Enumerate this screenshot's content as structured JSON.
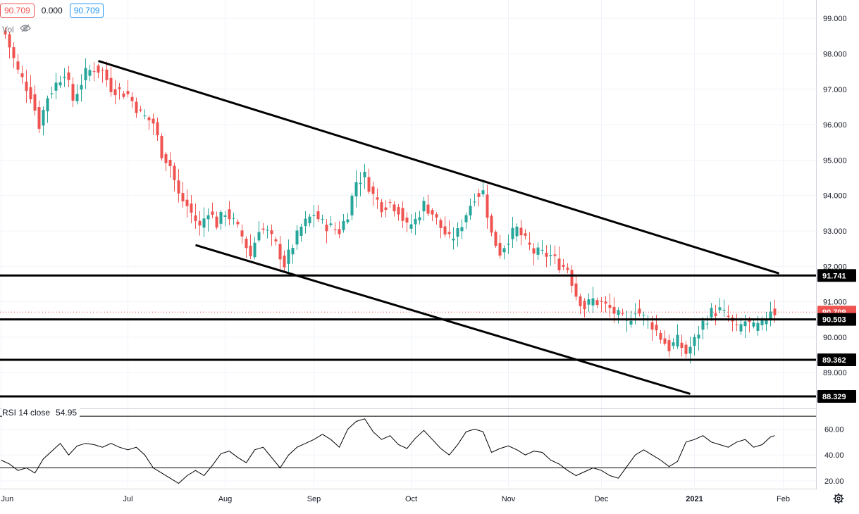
{
  "header": {
    "price_box": "90.709",
    "change": "0.000",
    "price_box2": "90.709",
    "vol_label": "Vol",
    "vol_icon": "eye-slash-icon"
  },
  "rsi_legend": {
    "label": "RSI 14 close",
    "value": "54.95"
  },
  "chart_data": {
    "type": "candlestick",
    "price_axis": {
      "ylim": [
        87.99,
        99.52
      ],
      "ticks": [
        "99.000",
        "98.000",
        "97.000",
        "96.000",
        "95.000",
        "94.000",
        "93.000",
        "92.000",
        "91.000",
        "90.000",
        "89.000"
      ],
      "tick_values": [
        99,
        98,
        97,
        96,
        95,
        94,
        93,
        92,
        91,
        90,
        89
      ]
    },
    "time_axis": {
      "labels": [
        "Jun",
        "Jul",
        "Aug",
        "Sep",
        "Oct",
        "Nov",
        "Dec",
        "2021",
        "Feb"
      ],
      "label_index": [
        -1,
        29,
        52,
        73,
        96,
        119,
        141,
        163,
        184
      ],
      "bar_count": 183
    },
    "price_labels": [
      {
        "text": "91.741",
        "value": 91.741,
        "style": "black"
      },
      {
        "text": "90.709",
        "value": 90.709,
        "style": "red"
      },
      {
        "text": "14:32:07",
        "value": 90.52,
        "style": "red"
      },
      {
        "text": "90.503",
        "value": 90.503,
        "style": "black"
      },
      {
        "text": "89.362",
        "value": 89.362,
        "style": "black"
      },
      {
        "text": "88.329",
        "value": 88.329,
        "style": "black"
      }
    ],
    "horizontal_lines": [
      91.741,
      90.503,
      89.362,
      88.329
    ],
    "current_price_line": 90.709,
    "trend_lines": [
      {
        "from": [
          22,
          97.8
        ],
        "to": [
          183,
          91.8
        ]
      },
      {
        "from": [
          45,
          92.6
        ],
        "to": [
          162,
          88.4
        ]
      }
    ],
    "waypoints": [
      [
        0,
        98.55
      ],
      [
        3,
        97.5
      ],
      [
        6,
        96.85
      ],
      [
        8,
        96.0
      ],
      [
        10,
        96.8
      ],
      [
        14,
        97.5
      ],
      [
        16,
        96.7
      ],
      [
        19,
        97.45
      ],
      [
        21,
        97.6
      ],
      [
        23,
        97.5
      ],
      [
        25,
        97.05
      ],
      [
        29,
        96.85
      ],
      [
        32,
        96.3
      ],
      [
        35,
        96.05
      ],
      [
        37,
        95.2
      ],
      [
        39,
        94.85
      ],
      [
        41,
        94.0
      ],
      [
        43,
        93.7
      ],
      [
        46,
        93.1
      ],
      [
        48,
        93.6
      ],
      [
        50,
        93.2
      ],
      [
        52,
        93.55
      ],
      [
        54,
        93.25
      ],
      [
        56,
        92.85
      ],
      [
        58,
        92.3
      ],
      [
        60,
        93.1
      ],
      [
        62,
        92.95
      ],
      [
        64,
        92.6
      ],
      [
        66,
        92.05
      ],
      [
        68,
        92.6
      ],
      [
        70,
        93.1
      ],
      [
        73,
        93.5
      ],
      [
        75,
        93.2
      ],
      [
        77,
        93.1
      ],
      [
        79,
        93.0
      ],
      [
        81,
        93.5
      ],
      [
        83,
        94.4
      ],
      [
        85,
        94.55
      ],
      [
        87,
        94.0
      ],
      [
        89,
        93.7
      ],
      [
        91,
        93.8
      ],
      [
        93,
        93.6
      ],
      [
        95,
        93.1
      ],
      [
        97,
        93.3
      ],
      [
        99,
        93.75
      ],
      [
        101,
        93.5
      ],
      [
        103,
        93.1
      ],
      [
        105,
        92.75
      ],
      [
        107,
        92.95
      ],
      [
        109,
        93.5
      ],
      [
        111,
        94.0
      ],
      [
        113,
        94.1
      ],
      [
        115,
        92.9
      ],
      [
        117,
        92.4
      ],
      [
        119,
        92.8
      ],
      [
        121,
        93.05
      ],
      [
        123,
        92.7
      ],
      [
        125,
        92.4
      ],
      [
        127,
        92.35
      ],
      [
        129,
        92.3
      ],
      [
        131,
        92.05
      ],
      [
        133,
        91.95
      ],
      [
        135,
        91.2
      ],
      [
        137,
        90.85
      ],
      [
        139,
        91.05
      ],
      [
        141,
        90.95
      ],
      [
        143,
        90.8
      ],
      [
        145,
        90.6
      ],
      [
        147,
        90.4
      ],
      [
        149,
        90.8
      ],
      [
        151,
        90.55
      ],
      [
        153,
        90.35
      ],
      [
        155,
        90.0
      ],
      [
        157,
        89.7
      ],
      [
        159,
        89.9
      ],
      [
        161,
        89.55
      ],
      [
        163,
        89.9
      ],
      [
        165,
        90.4
      ],
      [
        167,
        90.7
      ],
      [
        169,
        90.75
      ],
      [
        171,
        90.55
      ],
      [
        173,
        90.2
      ],
      [
        175,
        90.45
      ],
      [
        177,
        90.25
      ],
      [
        179,
        90.35
      ],
      [
        181,
        90.8
      ],
      [
        182,
        90.71
      ]
    ],
    "rsi": {
      "ylim": [
        15,
        75
      ],
      "ticks": [
        "60.00",
        "40.00",
        "20.00"
      ],
      "tick_values": [
        60,
        40,
        20
      ],
      "bands": [
        70,
        30
      ],
      "points": [
        [
          -1,
          36
        ],
        [
          1,
          33
        ],
        [
          3,
          28
        ],
        [
          5,
          30
        ],
        [
          7,
          26
        ],
        [
          9,
          37
        ],
        [
          11,
          43
        ],
        [
          13,
          49
        ],
        [
          15,
          40
        ],
        [
          17,
          47
        ],
        [
          19,
          49
        ],
        [
          21,
          48
        ],
        [
          23,
          46
        ],
        [
          25,
          49
        ],
        [
          27,
          46
        ],
        [
          29,
          44
        ],
        [
          31,
          46
        ],
        [
          33,
          40
        ],
        [
          35,
          30
        ],
        [
          37,
          26
        ],
        [
          39,
          22
        ],
        [
          41,
          18
        ],
        [
          43,
          24
        ],
        [
          45,
          28
        ],
        [
          47,
          24
        ],
        [
          49,
          32
        ],
        [
          51,
          41
        ],
        [
          53,
          43
        ],
        [
          55,
          38
        ],
        [
          57,
          34
        ],
        [
          59,
          44
        ],
        [
          61,
          46
        ],
        [
          63,
          38
        ],
        [
          65,
          30
        ],
        [
          67,
          40
        ],
        [
          69,
          46
        ],
        [
          71,
          49
        ],
        [
          73,
          52
        ],
        [
          75,
          56
        ],
        [
          77,
          52
        ],
        [
          79,
          46
        ],
        [
          81,
          60
        ],
        [
          83,
          66
        ],
        [
          85,
          68
        ],
        [
          87,
          58
        ],
        [
          89,
          52
        ],
        [
          91,
          55
        ],
        [
          93,
          48
        ],
        [
          95,
          45
        ],
        [
          97,
          53
        ],
        [
          99,
          59
        ],
        [
          101,
          52
        ],
        [
          103,
          45
        ],
        [
          105,
          40
        ],
        [
          107,
          48
        ],
        [
          109,
          58
        ],
        [
          111,
          60
        ],
        [
          113,
          58
        ],
        [
          115,
          42
        ],
        [
          117,
          45
        ],
        [
          119,
          47
        ],
        [
          121,
          44
        ],
        [
          123,
          40
        ],
        [
          125,
          43
        ],
        [
          127,
          42
        ],
        [
          129,
          36
        ],
        [
          131,
          33
        ],
        [
          133,
          28
        ],
        [
          135,
          24
        ],
        [
          137,
          27
        ],
        [
          139,
          30
        ],
        [
          141,
          28
        ],
        [
          143,
          24
        ],
        [
          145,
          22
        ],
        [
          147,
          31
        ],
        [
          149,
          40
        ],
        [
          151,
          44
        ],
        [
          153,
          40
        ],
        [
          155,
          36
        ],
        [
          157,
          31
        ],
        [
          159,
          35
        ],
        [
          161,
          50
        ],
        [
          163,
          52
        ],
        [
          165,
          55
        ],
        [
          167,
          50
        ],
        [
          169,
          48
        ],
        [
          171,
          46
        ],
        [
          173,
          50
        ],
        [
          175,
          52
        ],
        [
          177,
          46
        ],
        [
          179,
          48
        ],
        [
          181,
          54
        ],
        [
          182,
          55
        ]
      ]
    }
  },
  "colors": {
    "up": "#26a69a",
    "down": "#ef5350",
    "grid": "#f0f3fa",
    "axis_text": "#131722",
    "lines": "#000000",
    "price_red": "#ef5350"
  }
}
